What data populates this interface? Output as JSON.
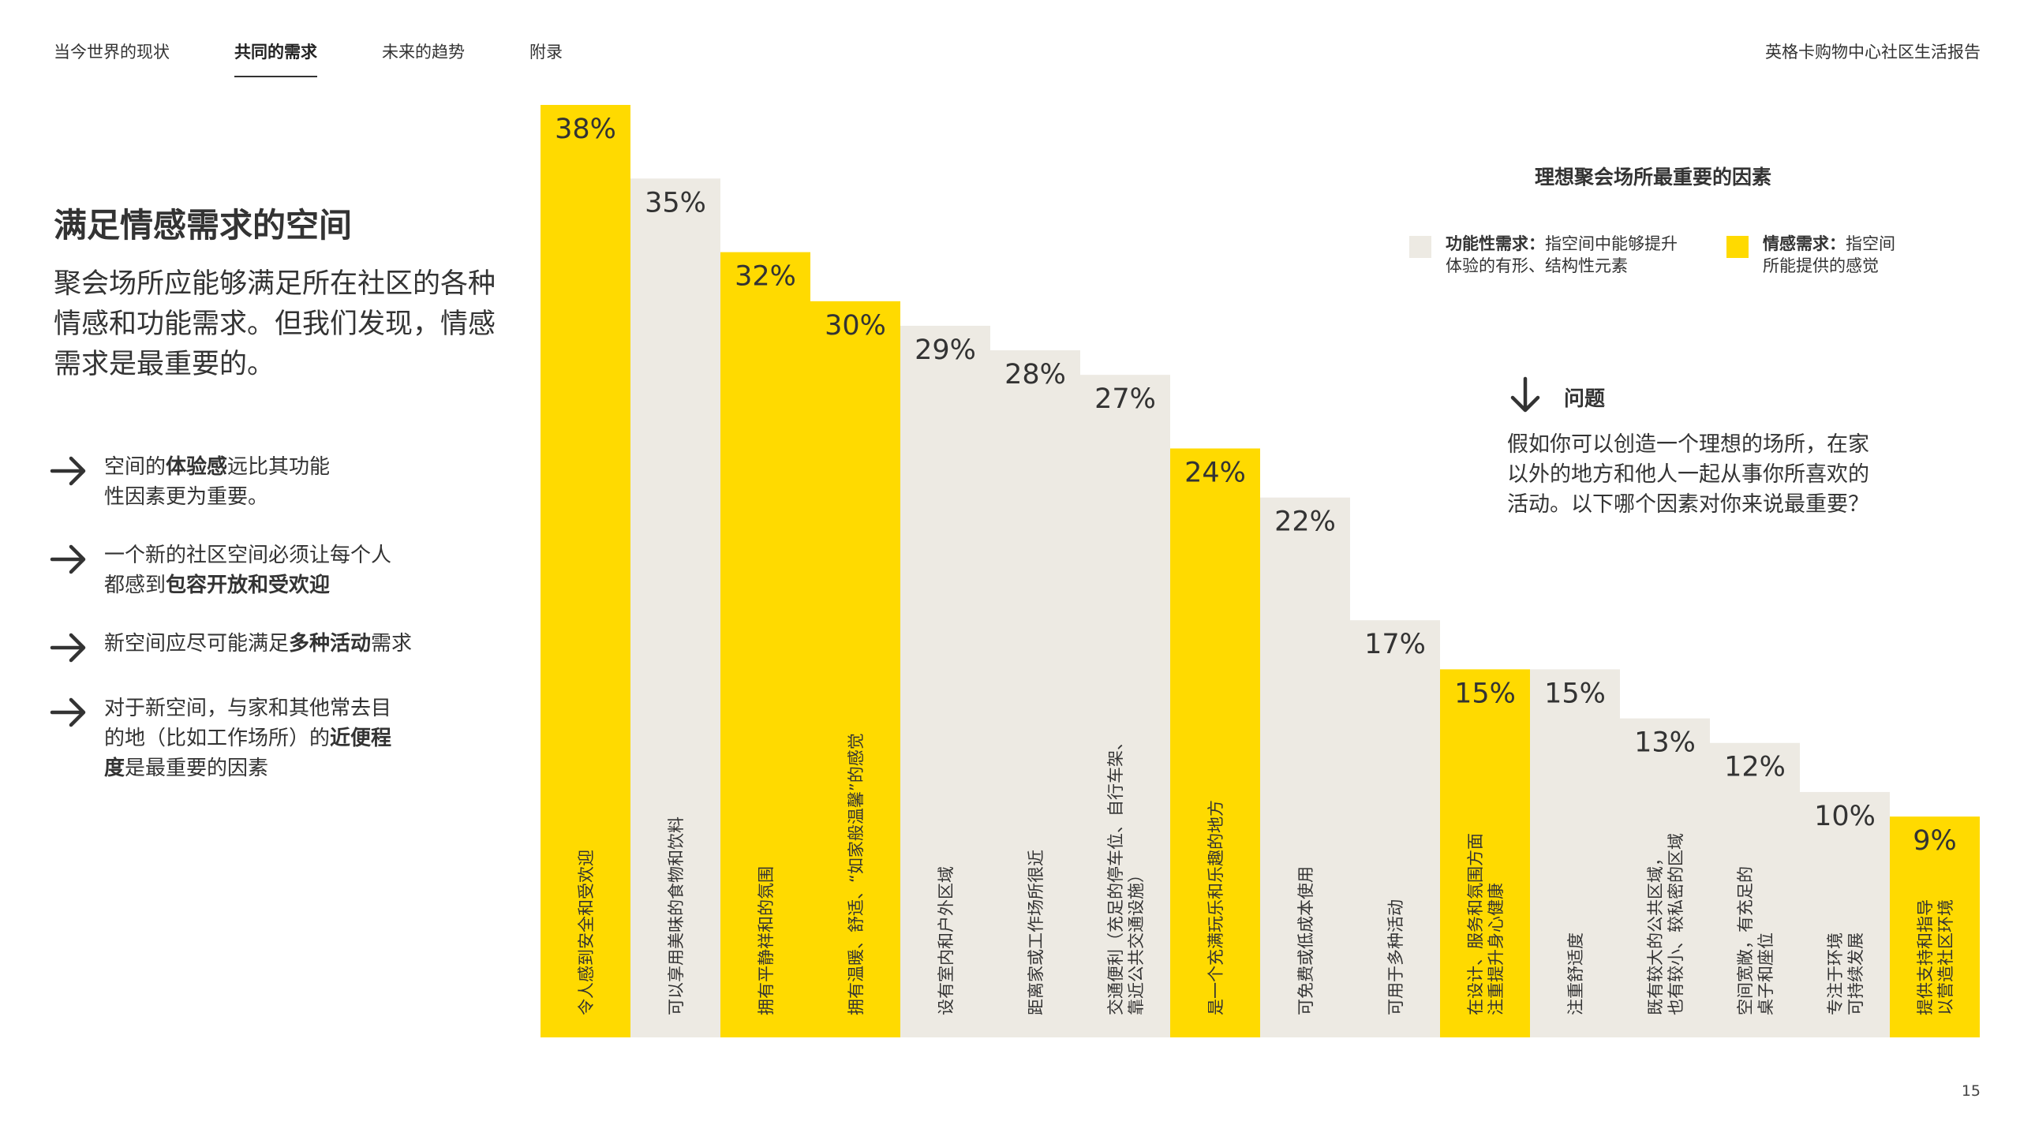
{
  "nav": {
    "items": [
      "当今世界的现状",
      "共同的需求",
      "未来的趋势",
      "附录"
    ],
    "active_index": 1
  },
  "report_title": "英格卡购物中心社区生活报告",
  "page_number": "15",
  "left": {
    "title": "满足情感需求的空间",
    "lede": "聚会场所应能够满足所在社区的各种情感和功能需求。但我们发现，情感需求是最重要的。",
    "bullets": [
      {
        "pre": "空间的",
        "bold": "体验感",
        "post": "远比其功能性因素更为重要。"
      },
      {
        "pre": "一个新的社区空间必须让每个人都感到",
        "bold": "包容开放和受欢迎",
        "post": ""
      },
      {
        "pre": "新空间应尽可能满足",
        "bold": "多种活动",
        "post": "需求"
      },
      {
        "pre": "对于新空间，与家和其他常去目的地（比如工作场所）的",
        "bold": "近便程度",
        "post": "是最重要的因素"
      }
    ]
  },
  "chart_heading": "理想聚会场所最重要的因素",
  "legend": [
    {
      "type": "functional",
      "bold": "功能性需求：",
      "text": "指空间中能够提升体验的有形、结构性元素"
    },
    {
      "type": "emotional",
      "bold": "情感需求：",
      "text": "指空间所能提供的感觉"
    }
  ],
  "question": {
    "label": "问题",
    "text": "假如你可以创造一个理想的场所，在家以外的地方和他人一起从事你所喜欢的活动。以下哪个因素对你来说最重要？"
  },
  "colors": {
    "emotional": "#FFDA00",
    "functional": "#EDEAE3",
    "text": "#333333"
  },
  "icons": {
    "bullet": "arrow-right-icon",
    "question": "arrow-down-icon"
  },
  "chart_data": {
    "type": "bar",
    "title": "理想聚会场所最重要的因素",
    "ylim": [
      0,
      38
    ],
    "categories": [
      "令人感到安全和受欢迎",
      "可以享用美味的食物和饮料",
      "拥有平静祥和的氛围",
      "拥有温暖、舒适、“如家般温馨”的感觉",
      "设有室内和户外区域",
      "距离家或工作场所很近",
      "交通便利（充足的停车位、自行车架、靠近公共交通设施）",
      "是一个充满玩乐和乐趣的地方",
      "可免费或低成本使用",
      "可用于多种活动",
      "在设计、服务和氛围方面注重提升身心健康",
      "注重舒适度",
      "既有较大的公共区域，也有较小、较私密的区域",
      "空间宽敞，有充足的桌子和座位",
      "专注于环境可持续发展",
      "提供支持和指导以营造社区环境"
    ],
    "values": [
      38,
      35,
      32,
      30,
      29,
      28,
      27,
      24,
      22,
      17,
      15,
      15,
      13,
      12,
      10,
      9
    ],
    "value_labels": [
      "38%",
      "35%",
      "32%",
      "30%",
      "29%",
      "28%",
      "27%",
      "24%",
      "22%",
      "17%",
      "15%",
      "15%",
      "13%",
      "12%",
      "10%",
      "9%"
    ],
    "need_type": [
      "emotional",
      "functional",
      "emotional",
      "emotional",
      "functional",
      "functional",
      "functional",
      "emotional",
      "functional",
      "functional",
      "emotional",
      "functional",
      "functional",
      "functional",
      "functional",
      "emotional"
    ],
    "label_lines": [
      [
        "令人感到安全和受欢迎"
      ],
      [
        "可以享用美味的食物和饮料"
      ],
      [
        "拥有平静祥和的氛围"
      ],
      [
        "拥有温暖、舒适、“如家般温馨”的感觉"
      ],
      [
        "设有室内和户外区域"
      ],
      [
        "距离家或工作场所很近"
      ],
      [
        "交通便利（充足的停车位、自行车架、",
        "靠近公共交通设施）"
      ],
      [
        "是一个充满玩乐和乐趣的地方"
      ],
      [
        "可免费或低成本使用"
      ],
      [
        "可用于多种活动"
      ],
      [
        "在设计、服务和氛围方面",
        "注重提升身心健康"
      ],
      [
        "注重舒适度"
      ],
      [
        "既有较大的公共区域，",
        "也有较小、较私密的区域"
      ],
      [
        "空间宽敞，有充足的",
        "桌子和座位"
      ],
      [
        "专注于环境",
        "可持续发展"
      ],
      [
        "提供支持和指导",
        "以营造社区环境"
      ]
    ],
    "legend": [
      "功能性需求",
      "情感需求"
    ],
    "grid": false
  }
}
